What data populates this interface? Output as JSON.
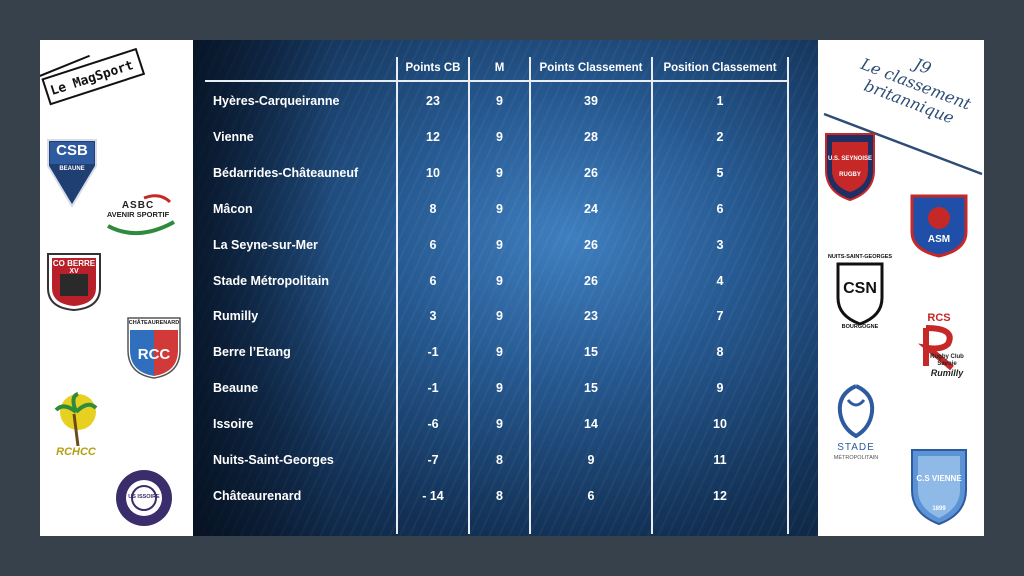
{
  "header_left": {
    "brand": "Le MagSport"
  },
  "header_right": {
    "round": "J9",
    "title_line1": "Le classement",
    "title_line2": "britannique"
  },
  "table": {
    "columns": [
      "Points CB",
      "M",
      "Points Classement",
      "Position Classement"
    ],
    "rows": [
      {
        "team": "Hyères-Carqueiranne",
        "points_cb": "23",
        "m": "9",
        "points_classement": "39",
        "position": "1"
      },
      {
        "team": "Vienne",
        "points_cb": "12",
        "m": "9",
        "points_classement": "28",
        "position": "2"
      },
      {
        "team": "Bédarrides-Châteauneuf",
        "points_cb": "10",
        "m": "9",
        "points_classement": "26",
        "position": "5"
      },
      {
        "team": "Mâcon",
        "points_cb": "8",
        "m": "9",
        "points_classement": "24",
        "position": "6"
      },
      {
        "team": "La Seyne-sur-Mer",
        "points_cb": "6",
        "m": "9",
        "points_classement": "26",
        "position": "3"
      },
      {
        "team": "Stade Métropolitain",
        "points_cb": "6",
        "m": "9",
        "points_classement": "26",
        "position": "4"
      },
      {
        "team": "Rumilly",
        "points_cb": "3",
        "m": "9",
        "points_classement": "23",
        "position": "7"
      },
      {
        "team": "Berre l’Etang",
        "points_cb": "-1",
        "m": "9",
        "points_classement": "15",
        "position": "8"
      },
      {
        "team": "Beaune",
        "points_cb": "-1",
        "m": "9",
        "points_classement": "15",
        "position": "9"
      },
      {
        "team": "Issoire",
        "points_cb": "-6",
        "m": "9",
        "points_classement": "14",
        "position": "10"
      },
      {
        "team": "Nuits-Saint-Georges",
        "points_cb": "-7",
        "m": "8",
        "points_classement": "9",
        "position": "11"
      },
      {
        "team": "Châteaurenard",
        "points_cb": "- 14",
        "m": "8",
        "points_classement": "6",
        "position": "12"
      }
    ]
  },
  "logos_left": {
    "csb": "CSB",
    "csb_sub": "BEAUNE",
    "asbc": "ASBC",
    "asbc_sub": "AVENIR SPORTIF",
    "co_berre": "CO BERRE",
    "co_berre_sub": "XV",
    "rcc_top": "CHÂTEAURENARD",
    "rcc": "RCC",
    "rchcc": "RCHCC",
    "issoire": "US ISSOIRE"
  },
  "logos_right": {
    "seynoise": "U.S. SEYNOISE",
    "seynoise_sub": "RUGBY",
    "asm": "ASM",
    "csn_top": "NUITS-SAINT-GEORGES",
    "csn": "CSN",
    "csn_sub": "BOURGOGNE",
    "rcs": "RCS",
    "rcs_sub1": "Rugby Club",
    "rcs_sub2": "Savoie",
    "rcs_sub3": "Rumilly",
    "stade": "STADE",
    "stade_sub": "MÉTROPOLITAIN",
    "vienne": "C.S VIENNE",
    "vienne_sub": "1899"
  },
  "colors": {
    "panel_dark": "#0b1c33",
    "panel_light": "#3f7fc0",
    "title_blue": "#2d4d76",
    "frame": "#36414c"
  }
}
